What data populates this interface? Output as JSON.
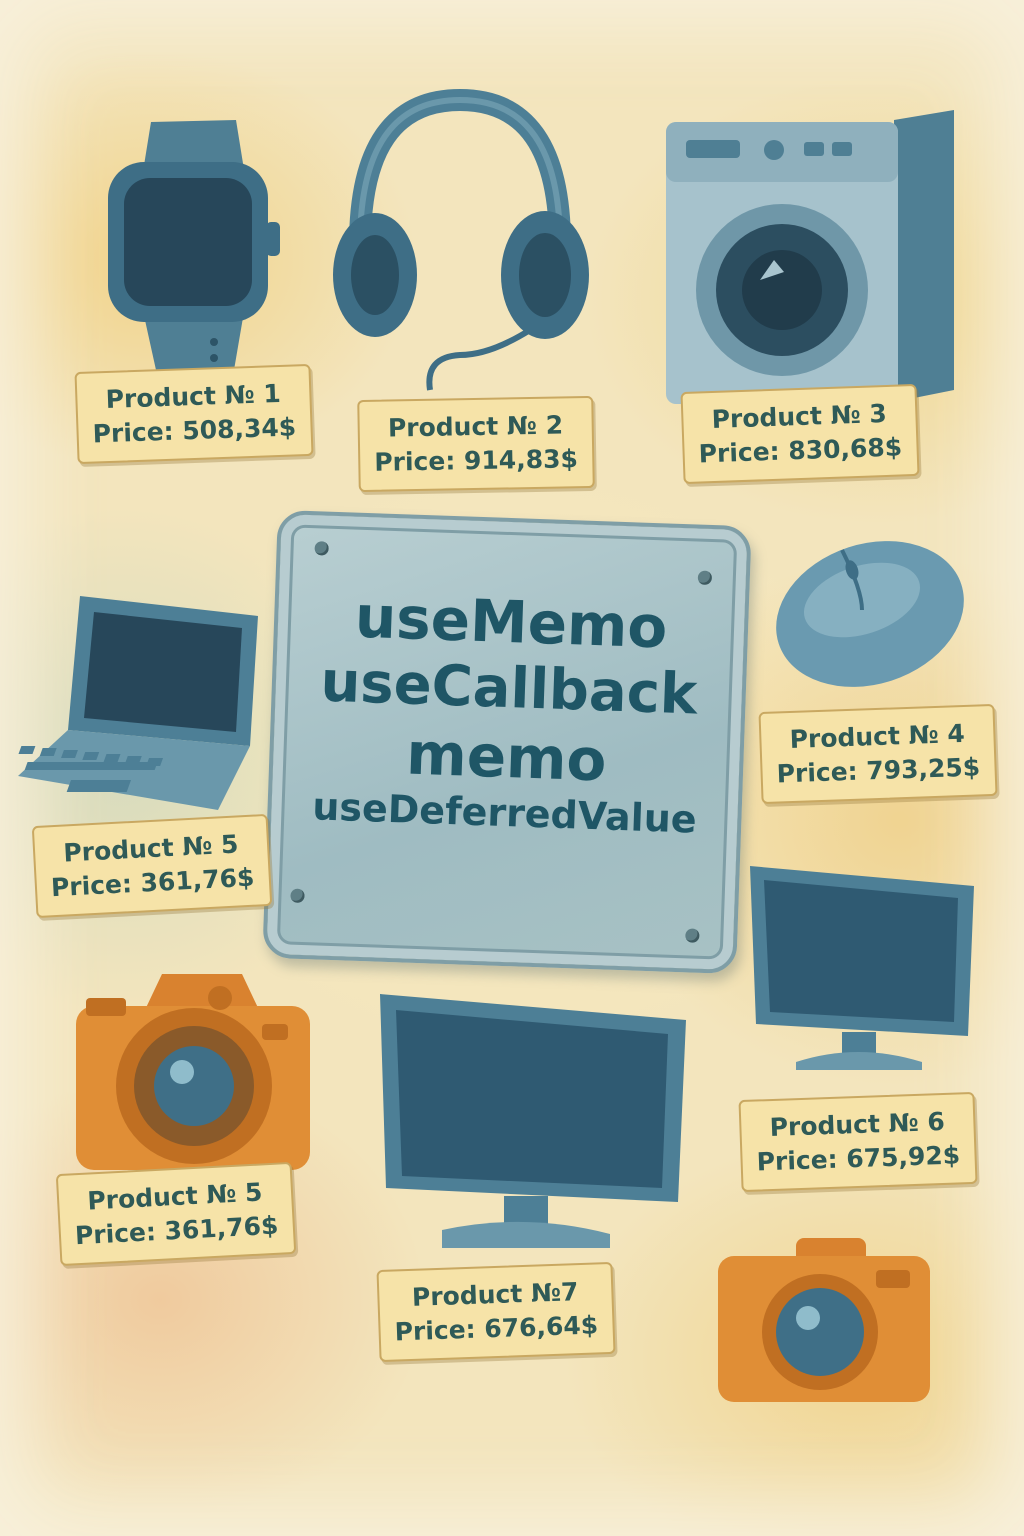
{
  "center_sign": {
    "lines": [
      "useMemo",
      "useCallback",
      "memo",
      "useDeferredValue"
    ]
  },
  "products": [
    {
      "icon": "smartwatch-icon",
      "label": "Product № 1",
      "price": "Price: 508,34$"
    },
    {
      "icon": "headphones-icon",
      "label": "Product № 2",
      "price": "Price: 914,83$"
    },
    {
      "icon": "washing-machine-icon",
      "label": "Product № 3",
      "price": "Price: 830,68$"
    },
    {
      "icon": "mouse-icon",
      "label": "Product № 4",
      "price": "Price: 793,25$"
    },
    {
      "icon": "laptop-icon",
      "label": "Product № 5",
      "price": "Price: 361,76$"
    },
    {
      "icon": "camera-icon",
      "label": "Product № 5",
      "price": "Price: 361,76$"
    },
    {
      "icon": "monitor-icon",
      "label": "Product № 6",
      "price": "Price: 675,92$"
    },
    {
      "icon": "monitor-icon",
      "label": "Product №7",
      "price": "Price: 676,64$"
    },
    {
      "icon": "compact-camera-icon"
    }
  ],
  "colors": {
    "product_blue": "#4d7f96",
    "product_orange": "#d9822f",
    "tag_fill": "#f6e3a8",
    "text_teal": "#2f5a57"
  }
}
